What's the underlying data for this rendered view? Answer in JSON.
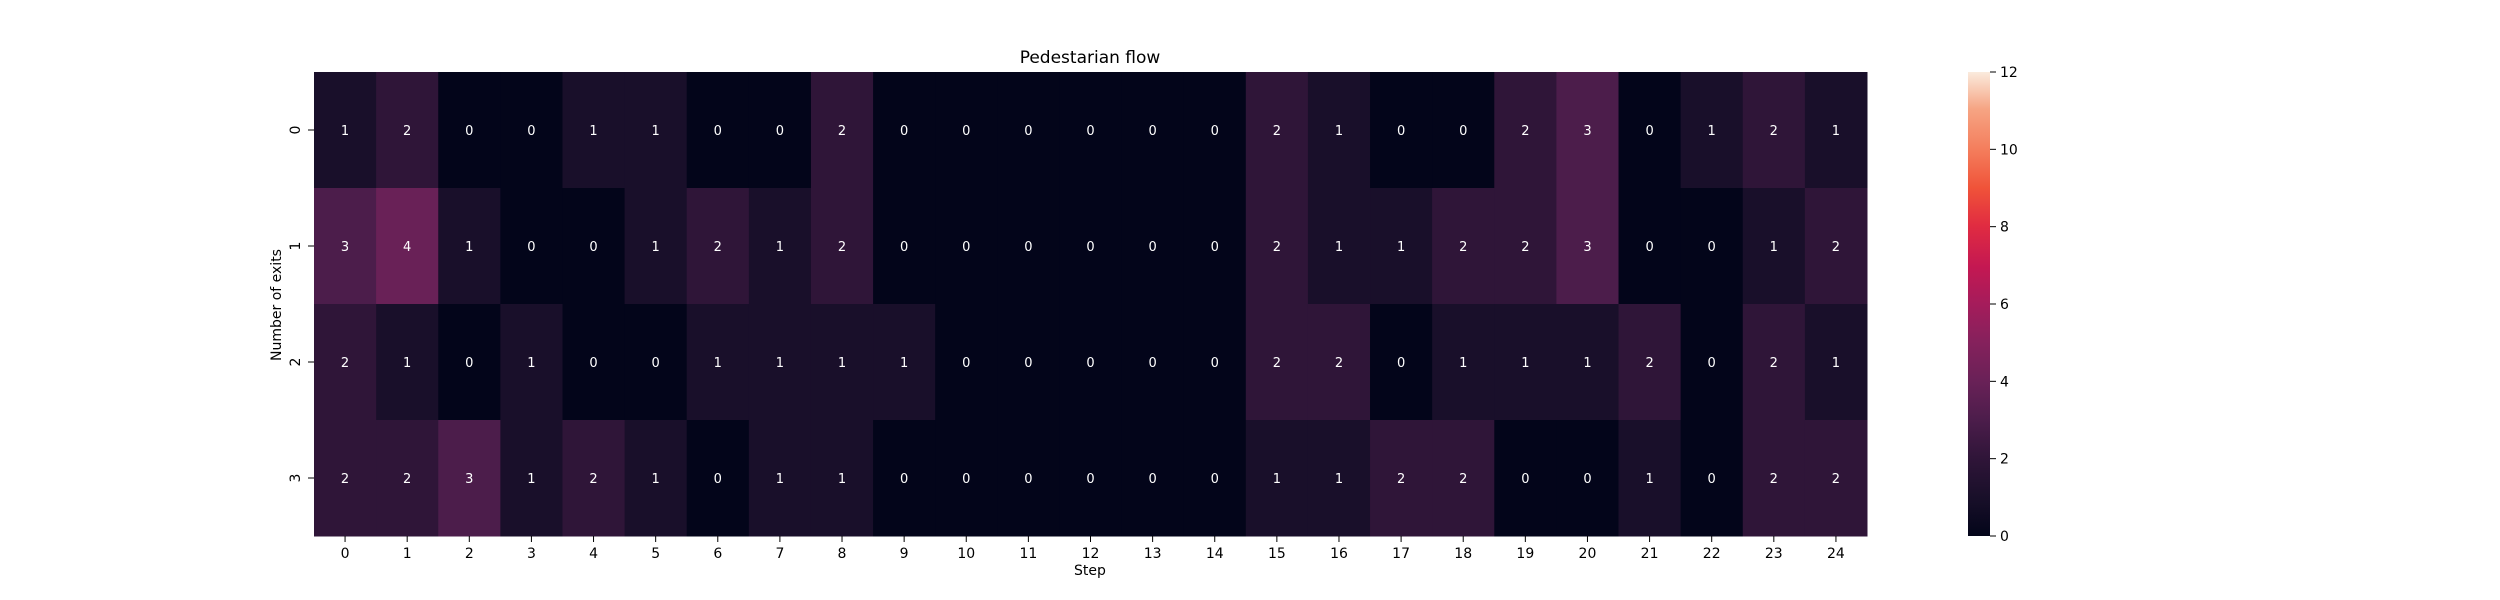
{
  "chart_data": {
    "type": "heatmap",
    "title": "Pedestarian flow",
    "xlabel": "Step",
    "ylabel": "Number of exits",
    "x": [
      "0",
      "1",
      "2",
      "3",
      "4",
      "5",
      "6",
      "7",
      "8",
      "9",
      "10",
      "11",
      "12",
      "13",
      "14",
      "15",
      "16",
      "17",
      "18",
      "19",
      "20",
      "21",
      "22",
      "23",
      "24"
    ],
    "y": [
      "0",
      "1",
      "2",
      "3"
    ],
    "values": [
      [
        1,
        2,
        0,
        0,
        1,
        1,
        0,
        0,
        2,
        0,
        0,
        0,
        0,
        0,
        0,
        2,
        1,
        0,
        0,
        2,
        3,
        0,
        1,
        2,
        1
      ],
      [
        3,
        4,
        1,
        0,
        0,
        1,
        2,
        1,
        2,
        0,
        0,
        0,
        0,
        0,
        0,
        2,
        1,
        1,
        2,
        2,
        3,
        0,
        0,
        1,
        2
      ],
      [
        2,
        1,
        0,
        1,
        0,
        0,
        1,
        1,
        1,
        1,
        0,
        0,
        0,
        0,
        0,
        2,
        2,
        0,
        1,
        1,
        1,
        2,
        0,
        2,
        1
      ],
      [
        2,
        2,
        3,
        1,
        2,
        1,
        0,
        1,
        1,
        0,
        0,
        0,
        0,
        0,
        0,
        1,
        1,
        2,
        2,
        0,
        0,
        1,
        0,
        2,
        2
      ]
    ],
    "colormap": "rocket",
    "colorbar": {
      "range": [
        0,
        12
      ],
      "ticks": [
        "0",
        "2",
        "4",
        "6",
        "8",
        "10",
        "12"
      ]
    },
    "annotated": true,
    "grid": false
  }
}
